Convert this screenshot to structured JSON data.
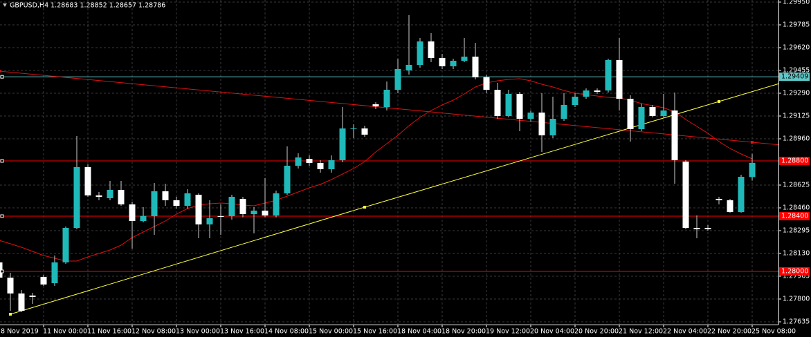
{
  "chart_data": {
    "type": "candlestick",
    "title": "GBPUSD,H4  1.28683 1.28852 1.28657 1.28786",
    "categories": [
      "8 Nov 2019",
      null,
      null,
      null,
      "11 Nov 00:00",
      null,
      null,
      null,
      "11 Nov 16:00",
      null,
      null,
      null,
      "12 Nov 08:00",
      null,
      null,
      null,
      "13 Nov 00:00",
      null,
      null,
      null,
      "13 Nov 16:00",
      null,
      null,
      null,
      "14 Nov 08:00",
      null,
      null,
      null,
      "15 Nov 00:00",
      null,
      null,
      null,
      "15 Nov 16:00",
      null,
      null,
      null,
      "18 Nov 04:00",
      null,
      null,
      null,
      "18 Nov 20:00",
      null,
      null,
      null,
      "19 Nov 12:00",
      null,
      null,
      null,
      "20 Nov 04:00",
      null,
      null,
      null,
      "20 Nov 20:00",
      null,
      null,
      null,
      "21 Nov 12:00",
      null,
      null,
      null,
      "22 Nov 04:00",
      null,
      null,
      null,
      "22 Nov 20:00",
      null,
      null,
      null,
      "25 Nov 08:00"
    ],
    "open": [
      1.28065,
      1.27955,
      1.2784,
      1.27825,
      1.2796,
      1.27915,
      1.28065,
      1.28315,
      1.28755,
      1.2855,
      1.2853,
      1.2859,
      1.28485,
      1.28365,
      1.284,
      1.2858,
      1.28515,
      1.28475,
      1.28555,
      1.2834,
      1.284,
      1.284,
      1.28525,
      1.28415,
      1.2844,
      1.28405,
      1.28565,
      1.28765,
      1.28815,
      1.28785,
      1.2874,
      1.28805,
      1.2903,
      1.29035,
      1.2921,
      1.2919,
      1.29315,
      1.29455,
      1.29495,
      1.29665,
      1.29545,
      1.29485,
      1.29525,
      1.29555,
      1.29405,
      1.29315,
      1.29125,
      1.29285,
      1.29105,
      1.2915,
      1.28985,
      1.29105,
      1.29205,
      1.29265,
      1.2931,
      1.2931,
      1.2953,
      1.2925,
      1.2903,
      1.2919,
      1.29125,
      1.29165,
      1.28795,
      1.28315,
      1.28315,
      1.28525,
      1.28515,
      1.2843,
      1.28683
    ],
    "high": [
      1.28225,
      1.2799,
      1.27865,
      1.27845,
      1.27975,
      1.28115,
      1.28325,
      1.2898,
      1.28775,
      1.28575,
      1.28655,
      1.28655,
      1.28505,
      1.28465,
      1.2864,
      1.28635,
      1.2854,
      1.28595,
      1.28565,
      1.28515,
      1.28485,
      1.28555,
      1.2854,
      1.28465,
      1.28675,
      1.28585,
      1.28905,
      1.28855,
      1.2884,
      1.28805,
      1.2884,
      1.2919,
      1.29065,
      1.29055,
      1.29225,
      1.29375,
      1.2954,
      1.29855,
      1.2969,
      1.29725,
      1.29575,
      1.2954,
      1.2969,
      1.29655,
      1.29425,
      1.29365,
      1.29315,
      1.293,
      1.29165,
      1.2929,
      1.29265,
      1.2929,
      1.2929,
      1.29325,
      1.29325,
      1.2954,
      1.2969,
      1.29275,
      1.29215,
      1.29205,
      1.29285,
      1.29295,
      1.28805,
      1.28405,
      1.28335,
      1.2854,
      1.28525,
      1.287,
      1.28852
    ],
    "low": [
      1.27915,
      1.27715,
      1.27705,
      1.27765,
      1.27895,
      1.27895,
      1.28055,
      1.28305,
      1.2854,
      1.28515,
      1.28515,
      1.28475,
      1.28165,
      1.28355,
      1.28265,
      1.28475,
      1.28455,
      1.28455,
      1.2824,
      1.2824,
      1.28265,
      1.28375,
      1.2839,
      1.28275,
      1.2839,
      1.2839,
      1.28555,
      1.28745,
      1.28765,
      1.28715,
      1.28715,
      1.2879,
      1.28965,
      1.28975,
      1.29175,
      1.29165,
      1.2929,
      1.29425,
      1.29475,
      1.29515,
      1.29465,
      1.29465,
      1.29515,
      1.2939,
      1.2929,
      1.29105,
      1.29115,
      1.29015,
      1.29085,
      1.28865,
      1.28965,
      1.2909,
      1.2919,
      1.2925,
      1.29285,
      1.29295,
      1.29165,
      1.2894,
      1.29015,
      1.29115,
      1.29115,
      1.28635,
      1.28305,
      1.2824,
      1.28295,
      1.28485,
      1.28425,
      1.28425,
      1.28657
    ],
    "close": [
      1.27955,
      1.2784,
      1.27715,
      1.27815,
      1.27905,
      1.28065,
      1.28315,
      1.28755,
      1.2855,
      1.2854,
      1.2859,
      1.28485,
      1.28365,
      1.284,
      1.2858,
      1.28515,
      1.28475,
      1.28565,
      1.2834,
      1.28385,
      1.28395,
      1.2854,
      1.28415,
      1.2844,
      1.28405,
      1.28565,
      1.28765,
      1.28825,
      1.28785,
      1.2874,
      1.28805,
      1.29035,
      1.29035,
      1.2899,
      1.29195,
      1.29315,
      1.29465,
      1.29495,
      1.29665,
      1.29545,
      1.29485,
      1.29525,
      1.29555,
      1.29405,
      1.29315,
      1.29125,
      1.29285,
      1.29105,
      1.2915,
      1.28985,
      1.29105,
      1.29205,
      1.29265,
      1.2931,
      1.293,
      1.2953,
      1.2925,
      1.2903,
      1.2919,
      1.29125,
      1.29165,
      1.28805,
      1.28315,
      1.28305,
      1.28305,
      1.28515,
      1.2843,
      1.28685,
      1.28786
    ],
    "up_color": "#1fb9b9",
    "down_color": "#ffffff",
    "wick_color": "#d0d0d0",
    "moving_average": {
      "color": "#e01010",
      "values": [
        1.28225,
        1.282,
        1.28175,
        1.28145,
        1.28115,
        1.28095,
        1.28075,
        1.28075,
        1.28105,
        1.2813,
        1.28155,
        1.2819,
        1.28245,
        1.28285,
        1.28325,
        1.28365,
        1.28415,
        1.28455,
        1.2848,
        1.2849,
        1.28495,
        1.2849,
        1.2848,
        1.28475,
        1.28495,
        1.28515,
        1.28545,
        1.28575,
        1.28605,
        1.2863,
        1.28665,
        1.28705,
        1.28745,
        1.28795,
        1.28865,
        1.28925,
        1.28985,
        1.29055,
        1.29115,
        1.29165,
        1.29205,
        1.2924,
        1.29285,
        1.29335,
        1.29365,
        1.2938,
        1.2939,
        1.29395,
        1.2938,
        1.29355,
        1.29335,
        1.2931,
        1.2929,
        1.2928,
        1.2927,
        1.2926,
        1.29255,
        1.2924,
        1.29215,
        1.292,
        1.29185,
        1.29155,
        1.291,
        1.2905,
        1.29,
        1.2894,
        1.2889,
        1.2885,
        1.28815
      ]
    },
    "trendlines": [
      {
        "color": "#e01010",
        "values": [
          1.2945,
          null,
          null,
          null,
          null,
          null,
          null,
          null,
          null,
          null,
          null,
          null,
          null,
          null,
          null,
          null,
          null,
          null,
          null,
          null,
          null,
          null,
          null,
          null,
          null,
          null,
          null,
          null,
          null,
          null,
          null,
          null,
          null,
          null,
          null,
          null,
          null,
          null,
          null,
          null,
          null,
          null,
          null,
          null,
          null,
          null,
          null,
          null,
          null,
          null,
          null,
          null,
          null,
          null,
          null,
          null,
          null,
          null,
          null,
          null,
          null,
          null,
          null,
          null,
          null,
          null,
          null,
          null,
          1.28935
        ]
      },
      {
        "color": "#ffff40",
        "values": [
          null,
          1.2769,
          null,
          null,
          null,
          null,
          null,
          null,
          null,
          null,
          null,
          null,
          null,
          null,
          null,
          null,
          null,
          null,
          null,
          null,
          null,
          null,
          null,
          null,
          null,
          null,
          null,
          null,
          null,
          null,
          null,
          null,
          null,
          1.28465,
          null,
          null,
          null,
          null,
          null,
          null,
          null,
          null,
          null,
          null,
          null,
          null,
          null,
          null,
          null,
          null,
          null,
          null,
          null,
          null,
          null,
          null,
          null,
          null,
          null,
          null,
          null,
          null,
          null,
          null,
          null,
          1.2923,
          null,
          null,
          null
        ]
      }
    ],
    "hlines": [
      {
        "value": 1.29409,
        "label": "1.29409",
        "color": "#5fc8c8"
      },
      {
        "value": 1.288,
        "label": "1.28800",
        "color": "#ff0000"
      },
      {
        "value": 1.284,
        "label": "1.28400",
        "color": "#ff0000"
      },
      {
        "value": 1.28,
        "label": "1.28000",
        "color": "#ff0000"
      }
    ],
    "ylim": [
      1.27615,
      1.29965
    ],
    "yticks": [
      {
        "value": 1.2995,
        "label": "1.29950"
      },
      {
        "value": 1.29785,
        "label": "1.29785"
      },
      {
        "value": 1.2962,
        "label": "1.29620"
      },
      1.29455,
      {
        "value": 1.2929,
        "label": "1.29290"
      },
      1.29125,
      {
        "value": 1.2896,
        "label": "1.28960"
      },
      1.28625,
      {
        "value": 1.2846,
        "label": "1.28460"
      },
      1.28295,
      {
        "value": 1.2813,
        "label": "1.28130"
      },
      1.27965,
      {
        "value": 1.278,
        "label": "1.27800"
      },
      1.27635
    ],
    "grid": true
  }
}
